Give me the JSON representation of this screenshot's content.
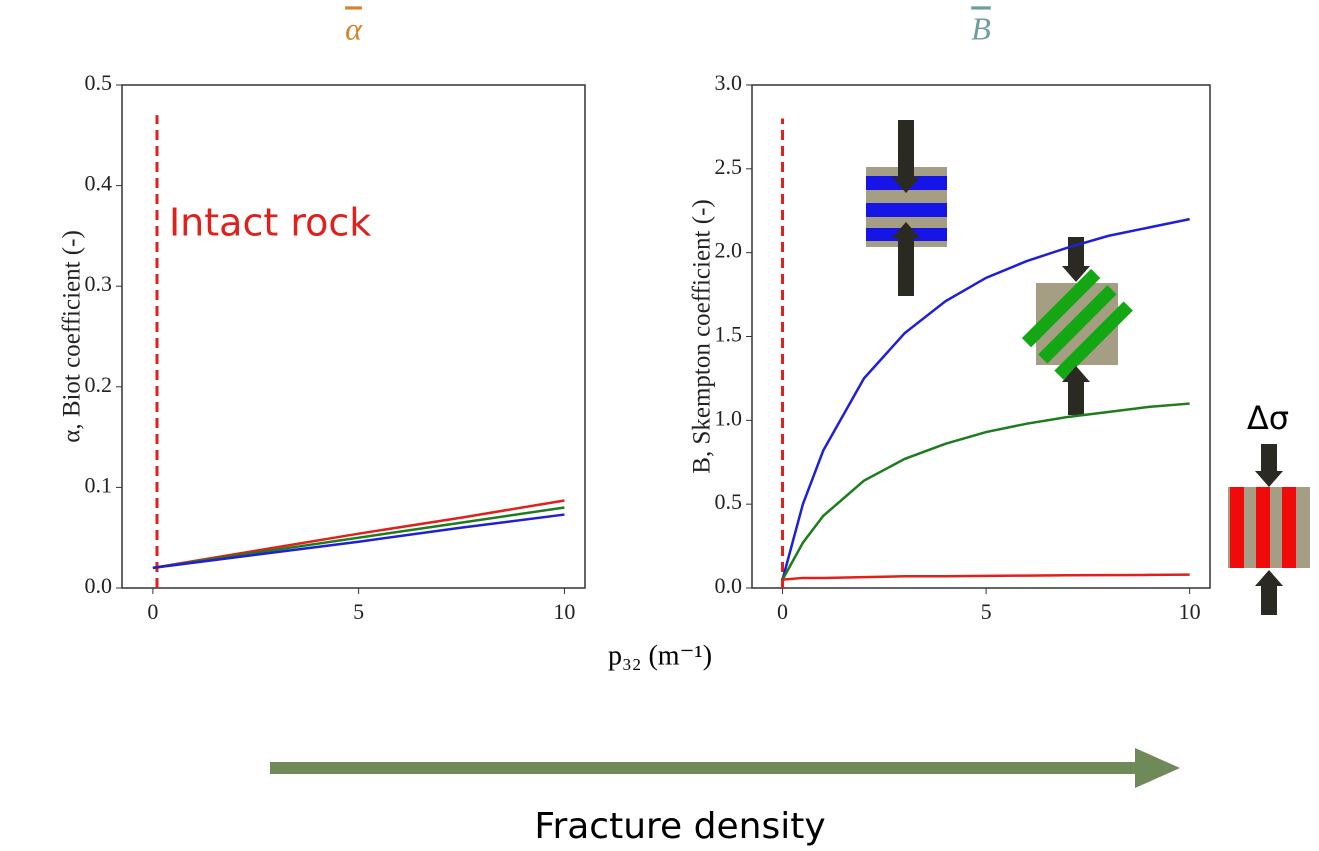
{
  "chart_data": [
    {
      "type": "line",
      "title": "α",
      "title_color": "#d4852a",
      "ylabel": "α, Biot coefficient (-)",
      "x": [
        0,
        2.5,
        5,
        7.5,
        10
      ],
      "series": [
        {
          "color": "#e0201b",
          "values": [
            0.02,
            0.037,
            0.054,
            0.07,
            0.087
          ]
        },
        {
          "color": "#1e7b1e",
          "values": [
            0.02,
            0.035,
            0.05,
            0.065,
            0.08
          ]
        },
        {
          "color": "#1f1fd6",
          "values": [
            0.02,
            0.033,
            0.046,
            0.06,
            0.073
          ]
        }
      ],
      "xlim": [
        -0.75,
        10.5
      ],
      "xticks": [
        0,
        5,
        10
      ],
      "ylim": [
        0,
        0.5
      ],
      "yticks": [
        {
          "value": 0,
          "label": "0.0"
        },
        0.1,
        0.2,
        0.3,
        0.4,
        0.5
      ],
      "vline": {
        "x": 0.1,
        "ymax": 0.47,
        "color": "#e0201b"
      },
      "annotation": "Intact rock"
    },
    {
      "type": "line",
      "title": "B",
      "title_color": "#6b9e9c",
      "ylabel": "B, Skempton coefficient (-)",
      "x": [
        0,
        0.5,
        1,
        2,
        3,
        4,
        5,
        6,
        7,
        8,
        9,
        10
      ],
      "series": [
        {
          "color": "#1f1fd6",
          "values": [
            0.05,
            0.5,
            0.82,
            1.25,
            1.52,
            1.71,
            1.85,
            1.95,
            2.03,
            2.1,
            2.15,
            2.2
          ]
        },
        {
          "color": "#1e7b1e",
          "values": [
            0.05,
            0.27,
            0.43,
            0.64,
            0.77,
            0.86,
            0.93,
            0.98,
            1.02,
            1.05,
            1.08,
            1.1
          ]
        },
        {
          "color": "#e0201b",
          "values": [
            0.05,
            0.06,
            0.06,
            0.065,
            0.07,
            0.07,
            0.072,
            0.074,
            0.076,
            0.077,
            0.078,
            0.08
          ]
        }
      ],
      "xlim": [
        -0.75,
        10.5
      ],
      "xticks": [
        0,
        5,
        10
      ],
      "ylim": [
        0,
        3
      ],
      "yticks": [
        {
          "value": 0,
          "label": "0.0"
        },
        0.5,
        {
          "value": 1,
          "label": "1.0"
        },
        1.5,
        {
          "value": 2,
          "label": "2.0"
        },
        2.5,
        {
          "value": 3,
          "label": "3.0"
        }
      ],
      "vline": {
        "x": 0,
        "ymax": 2.8,
        "color": "#e0201b"
      }
    }
  ],
  "xlabel": "p₃₂ (m⁻¹)",
  "arrow_label": "Fracture density",
  "stress_label": "Δσ"
}
